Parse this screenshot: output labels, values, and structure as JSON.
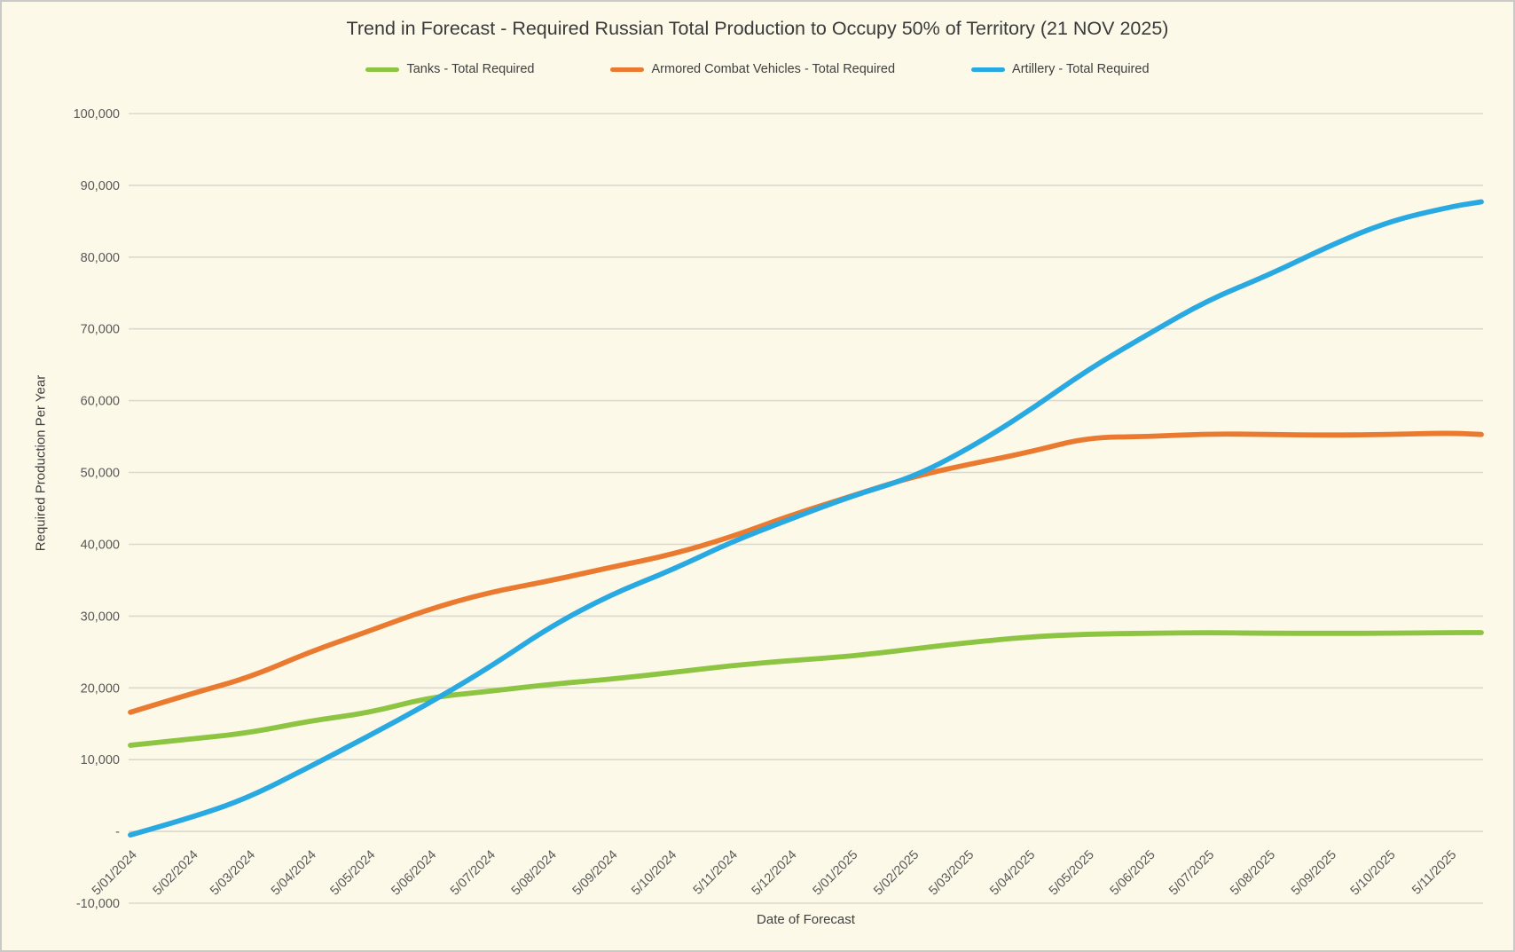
{
  "frame": {
    "background_color": "#FDF9E8",
    "border_color": "#C9C9C9",
    "gridline_color": "#DBD8CE"
  },
  "chart_data": {
    "type": "line",
    "title": "Trend in Forecast - Required Russian Total Production to Occupy 50% of Territory (21 NOV 2025)",
    "xlabel": "Date of Forecast",
    "ylabel": "Required Production Per Year",
    "ylim": [
      -10000,
      100000
    ],
    "grid": true,
    "legend_position": "top-center",
    "x_range": [
      "2024-01-05",
      "2025-11-21"
    ],
    "y_ticks": [
      {
        "value": 100000,
        "label": "100,000"
      },
      {
        "value": 90000,
        "label": "90,000"
      },
      {
        "value": 80000,
        "label": "80,000"
      },
      {
        "value": 70000,
        "label": "70,000"
      },
      {
        "value": 60000,
        "label": "60,000"
      },
      {
        "value": 50000,
        "label": "50,000"
      },
      {
        "value": 40000,
        "label": "40,000"
      },
      {
        "value": 30000,
        "label": "30,000"
      },
      {
        "value": 20000,
        "label": "20,000"
      },
      {
        "value": 10000,
        "label": "10,000"
      },
      {
        "value": 0,
        "label": "-"
      },
      {
        "value": -10000,
        "label": "-10,000"
      }
    ],
    "x_ticks": [
      {
        "date": "2024-01-05",
        "label": "5/01/2024"
      },
      {
        "date": "2024-02-05",
        "label": "5/02/2024"
      },
      {
        "date": "2024-03-05",
        "label": "5/03/2024"
      },
      {
        "date": "2024-04-05",
        "label": "5/04/2024"
      },
      {
        "date": "2024-05-05",
        "label": "5/05/2024"
      },
      {
        "date": "2024-06-05",
        "label": "5/06/2024"
      },
      {
        "date": "2024-07-05",
        "label": "5/07/2024"
      },
      {
        "date": "2024-08-05",
        "label": "5/08/2024"
      },
      {
        "date": "2024-09-05",
        "label": "5/09/2024"
      },
      {
        "date": "2024-10-05",
        "label": "5/10/2024"
      },
      {
        "date": "2024-11-05",
        "label": "5/11/2024"
      },
      {
        "date": "2024-12-05",
        "label": "5/12/2024"
      },
      {
        "date": "2025-01-05",
        "label": "5/01/2025"
      },
      {
        "date": "2025-02-05",
        "label": "5/02/2025"
      },
      {
        "date": "2025-03-05",
        "label": "5/03/2025"
      },
      {
        "date": "2025-04-05",
        "label": "5/04/2025"
      },
      {
        "date": "2025-05-05",
        "label": "5/05/2025"
      },
      {
        "date": "2025-06-05",
        "label": "5/06/2025"
      },
      {
        "date": "2025-07-05",
        "label": "5/07/2025"
      },
      {
        "date": "2025-08-05",
        "label": "5/08/2025"
      },
      {
        "date": "2025-09-05",
        "label": "5/09/2025"
      },
      {
        "date": "2025-10-05",
        "label": "5/10/2025"
      },
      {
        "date": "2025-11-05",
        "label": "5/11/2025"
      }
    ],
    "point_dates": [
      "2024-01-05",
      "2024-02-05",
      "2024-03-05",
      "2024-04-05",
      "2024-05-05",
      "2024-06-05",
      "2024-07-05",
      "2024-08-05",
      "2024-09-05",
      "2024-10-05",
      "2024-11-05",
      "2024-12-05",
      "2025-01-05",
      "2025-02-05",
      "2025-03-05",
      "2025-04-05",
      "2025-05-05",
      "2025-06-05",
      "2025-07-05",
      "2025-08-05",
      "2025-09-05",
      "2025-10-05",
      "2025-11-05",
      "2025-11-21"
    ],
    "series": [
      {
        "key": "tanks",
        "name": "Tanks - Total Required",
        "color": "#8DC441",
        "values": [
          12000,
          12900,
          13700,
          15400,
          16500,
          18700,
          19500,
          20500,
          21200,
          22100,
          23100,
          23800,
          24400,
          25400,
          26300,
          27100,
          27500,
          27600,
          27700,
          27600,
          27600,
          27600,
          27700,
          27700
        ]
      },
      {
        "key": "armored-combat-vehicles",
        "name": "Armored Combat Vehicles - Total Required",
        "color": "#EA7A2F",
        "values": [
          16600,
          19200,
          21400,
          25000,
          27900,
          31000,
          33300,
          34900,
          36800,
          38500,
          41000,
          44000,
          46700,
          49400,
          51100,
          52800,
          54900,
          55000,
          55400,
          55300,
          55200,
          55300,
          55500,
          55300
        ]
      },
      {
        "key": "artillery",
        "name": "Artillery - Total Required",
        "color": "#29A9E1",
        "values": [
          -500,
          1900,
          4700,
          9000,
          13300,
          17900,
          22800,
          28500,
          33000,
          36300,
          40300,
          43500,
          46700,
          49300,
          53200,
          58500,
          64300,
          69300,
          74000,
          77500,
          81600,
          85000,
          87000,
          87700
        ]
      }
    ]
  }
}
